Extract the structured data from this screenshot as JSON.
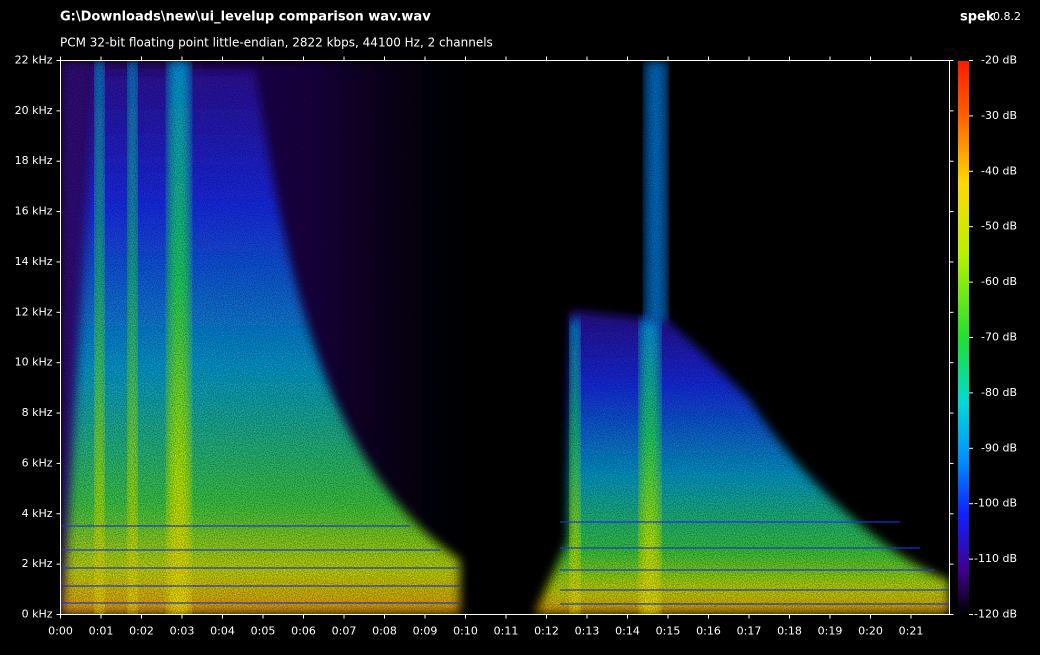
{
  "header": {
    "title": "G:\\Downloads\\new\\ui_levelup comparison wav.wav",
    "subtitle": "PCM 32-bit floating point little-endian, 2822 kbps, 44100 Hz, 2 channels",
    "app": "spek",
    "version": "0.8.2"
  },
  "frequency_axis": {
    "ticks": [
      "0 kHz",
      "2 kHz",
      "4 kHz",
      "6 kHz",
      "8 kHz",
      "10 kHz",
      "12 kHz",
      "14 kHz",
      "16 kHz",
      "18 kHz",
      "20 kHz",
      "22 kHz"
    ]
  },
  "time_axis": {
    "ticks": [
      "0:00",
      "0:01",
      "0:02",
      "0:03",
      "0:04",
      "0:05",
      "0:06",
      "0:07",
      "0:08",
      "0:09",
      "0:10",
      "0:11",
      "0:12",
      "0:13",
      "0:14",
      "0:15",
      "0:16",
      "0:17",
      "0:18",
      "0:19",
      "0:20",
      "0:21"
    ]
  },
  "colorbar": {
    "ticks": [
      "-20 dB",
      "-30 dB",
      "-40 dB",
      "-50 dB",
      "-60 dB",
      "-70 dB",
      "-80 dB",
      "-90 dB",
      "-100 dB",
      "-110 dB",
      "-120 dB"
    ]
  }
}
